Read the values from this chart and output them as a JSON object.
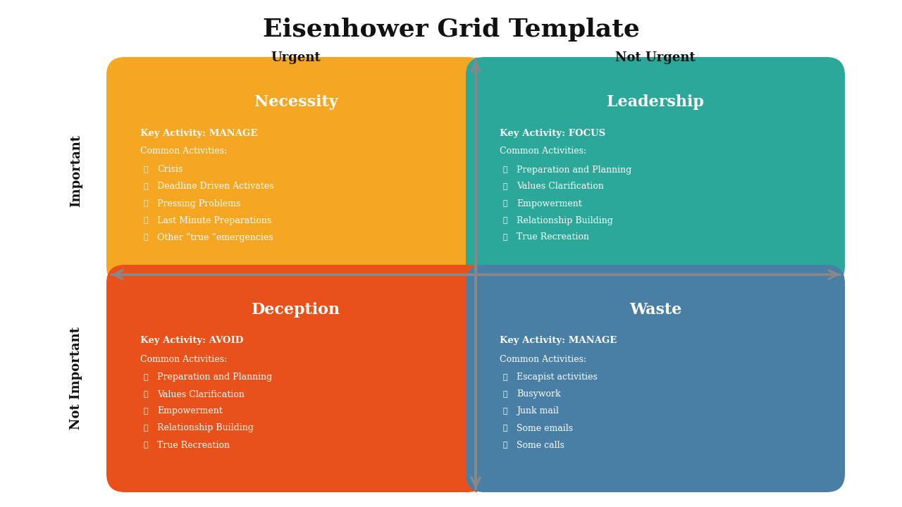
{
  "title": "Eisenhower Grid Template",
  "title_fontsize": 26,
  "background_color": "#ffffff",
  "axis_color": "#888888",
  "col_labels": [
    "Urgent",
    "Not Urgent"
  ],
  "row_labels": [
    "Important",
    "Not Important"
  ],
  "quadrants": [
    {
      "name": "Necessity",
      "color": "#F5A623",
      "key_activity": "Key Activity: MANAGE",
      "common": "Common Activities:",
      "items": [
        "Crisis",
        "Deadline Driven Activates",
        "Pressing Problems",
        "Last Minute Preparations",
        "Other “true “emergencies"
      ],
      "col": 0,
      "row": 0
    },
    {
      "name": "Leadership",
      "color": "#2BA899",
      "key_activity": "Key Activity: FOCUS",
      "common": "Common Activities:",
      "items": [
        "Preparation and Planning",
        "Values Clarification",
        "Empowerment",
        "Relationship Building",
        "True Recreation"
      ],
      "col": 1,
      "row": 0
    },
    {
      "name": "Deception",
      "color": "#E8521A",
      "key_activity": "Key Activity: AVOID",
      "common": "Common Activities:",
      "items": [
        "Preparation and Planning",
        "Values Clarification",
        "Empowerment",
        "Relationship Building",
        "True Recreation"
      ],
      "col": 0,
      "row": 1
    },
    {
      "name": "Waste",
      "color": "#4A7FA5",
      "key_activity": "Key Activity: MANAGE",
      "common": "Common Activities:",
      "items": [
        "Escapist activities",
        "Busywork",
        "Junk mail",
        "Some emails",
        "Some calls"
      ],
      "col": 1,
      "row": 1
    }
  ]
}
